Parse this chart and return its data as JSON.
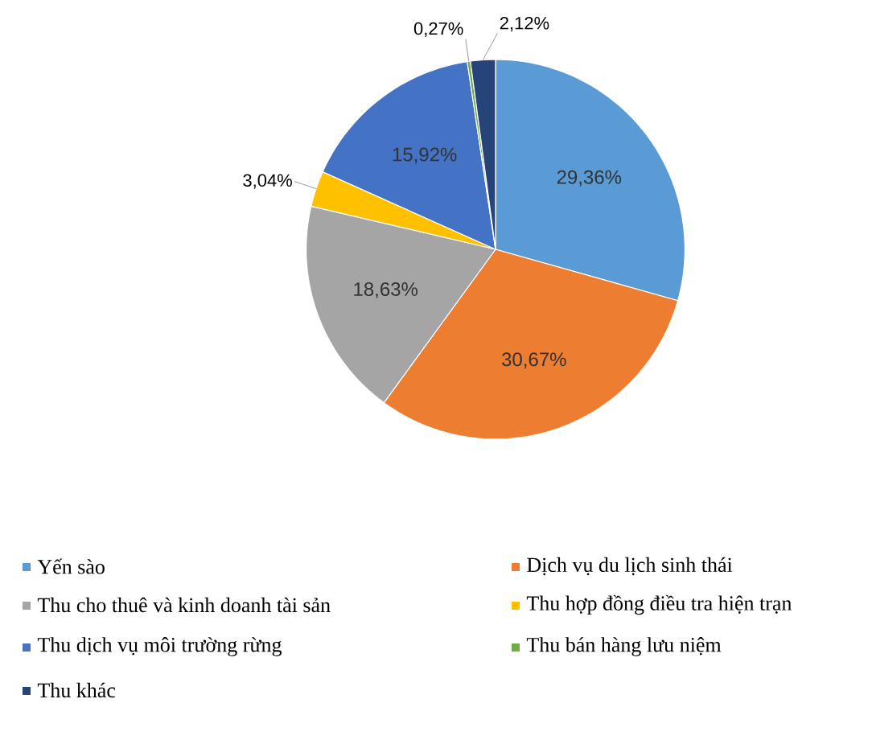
{
  "chart_data": {
    "type": "pie",
    "categories": [
      "Yến sào",
      "Dịch vụ du lịch sinh thái",
      "Thu cho thuê và kinh doanh tài sản",
      "Thu hợp đồng điều tra hiện trạn",
      "Thu dịch vụ môi trường rừng",
      "Thu bán hàng lưu niệm",
      "Thu khác"
    ],
    "values": [
      29.36,
      30.67,
      18.63,
      3.04,
      15.92,
      0.27,
      2.12
    ],
    "colors": [
      "#5b9bd5",
      "#ed7d31",
      "#a5a5a5",
      "#ffc000",
      "#4472c4",
      "#70ad47",
      "#264478"
    ],
    "value_labels": [
      "29,36%",
      "30,67%",
      "18,63%",
      "3,04%",
      "15,92%",
      "0,27%",
      "2,12%"
    ],
    "legend": "bottom"
  }
}
